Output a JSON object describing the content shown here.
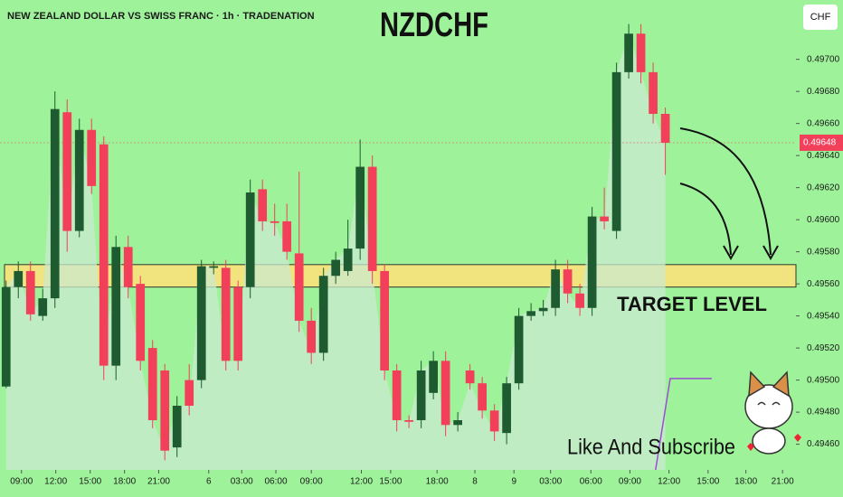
{
  "chart_data": {
    "type": "candlestick",
    "title": "NZDCHF",
    "subtitle": "NEW ZEALAND DOLLAR VS SWISS FRANC · 1h · TRADENATION",
    "currency_button": "CHF",
    "up_color": "#1e5b30",
    "down_color": "#f23f5a",
    "area_color": "#c9e9cf",
    "open": [
      0.49496,
      0.49558,
      0.49568,
      0.4954,
      0.49551,
      0.49667,
      0.49593,
      0.49656,
      0.49647,
      0.49509,
      0.49583,
      0.4956,
      0.4952,
      0.49506,
      0.49458,
      0.495,
      0.495,
      0.4957,
      0.4957,
      0.49558,
      0.49558,
      0.49619,
      0.49599,
      0.49599,
      0.49579,
      0.49537,
      0.49517,
      0.49565,
      0.49568,
      0.49582,
      0.49633,
      0.49568,
      0.49506,
      0.49475,
      0.49475,
      0.49492,
      0.49512,
      0.49472,
      0.49506,
      0.49498,
      0.49481,
      0.49467,
      0.49498,
      0.4954,
      0.49543,
      0.49545,
      0.49569,
      0.49554,
      0.49545,
      0.49602,
      0.49593,
      0.49692,
      0.49716,
      0.49692,
      0.49666
    ],
    "high": [
      0.49562,
      0.49574,
      0.49574,
      0.49557,
      0.4968,
      0.49675,
      0.49663,
      0.49663,
      0.49652,
      0.4959,
      0.4959,
      0.49565,
      0.49525,
      0.4951,
      0.4949,
      0.4951,
      0.49575,
      0.49574,
      0.49575,
      0.49562,
      0.49625,
      0.49625,
      0.4961,
      0.4961,
      0.4963,
      0.49545,
      0.4957,
      0.4958,
      0.496,
      0.4965,
      0.4964,
      0.49572,
      0.4951,
      0.49478,
      0.49512,
      0.49518,
      0.49518,
      0.4948,
      0.4951,
      0.49502,
      0.49485,
      0.49502,
      0.49545,
      0.49548,
      0.4955,
      0.49575,
      0.49575,
      0.4956,
      0.49608,
      0.4962,
      0.49698,
      0.49722,
      0.49722,
      0.49698,
      0.4967
    ],
    "low": [
      0.49495,
      0.49551,
      0.49537,
      0.49537,
      0.49545,
      0.4958,
      0.49589,
      0.49616,
      0.495,
      0.495,
      0.49551,
      0.49506,
      0.4947,
      0.4945,
      0.49452,
      0.49478,
      0.49495,
      0.49566,
      0.49506,
      0.49506,
      0.49551,
      0.49593,
      0.4959,
      0.49575,
      0.4953,
      0.4951,
      0.49512,
      0.4956,
      0.49565,
      0.49575,
      0.4956,
      0.495,
      0.49468,
      0.4947,
      0.4947,
      0.49488,
      0.49465,
      0.49468,
      0.49494,
      0.49476,
      0.49462,
      0.4946,
      0.49494,
      0.49537,
      0.4954,
      0.4954,
      0.49548,
      0.4954,
      0.4954,
      0.49594,
      0.49588,
      0.49688,
      0.49685,
      0.4966,
      0.49628
    ],
    "close": [
      0.49558,
      0.49568,
      0.49541,
      0.49551,
      0.49669,
      0.49593,
      0.49656,
      0.49621,
      0.49509,
      0.49583,
      0.49558,
      0.49512,
      0.49475,
      0.49456,
      0.49484,
      0.49484,
      0.49571,
      0.49571,
      0.49512,
      0.49512,
      0.49617,
      0.49599,
      0.49598,
      0.4958,
      0.49537,
      0.49517,
      0.49565,
      0.49575,
      0.49582,
      0.49633,
      0.49568,
      0.49506,
      0.49475,
      0.49474,
      0.49506,
      0.49512,
      0.49472,
      0.49475,
      0.49498,
      0.49481,
      0.49468,
      0.49498,
      0.4954,
      0.49543,
      0.49545,
      0.49569,
      0.49554,
      0.49545,
      0.49602,
      0.49599,
      0.49692,
      0.49716,
      0.49692,
      0.49666,
      0.49648
    ],
    "xlim": [
      -0.5,
      64.7
    ],
    "xticks": [
      {
        "value": 1.26,
        "label": "09:00"
      },
      {
        "value": 4.07,
        "label": "12:00"
      },
      {
        "value": 6.89,
        "label": "15:00"
      },
      {
        "value": 9.7,
        "label": "18:00"
      },
      {
        "value": 12.5,
        "label": "21:00"
      },
      {
        "value": 16.6,
        "label": "6"
      },
      {
        "value": 19.3,
        "label": "03:00"
      },
      {
        "value": 22.1,
        "label": "06:00"
      },
      {
        "value": 25.0,
        "label": "09:00"
      },
      {
        "value": 29.1,
        "label": "12:00"
      },
      {
        "value": 31.5,
        "label": "15:00"
      },
      {
        "value": 35.3,
        "label": "18:00"
      },
      {
        "value": 38.4,
        "label": "8"
      },
      {
        "value": 41.6,
        "label": "9"
      },
      {
        "value": 44.6,
        "label": "03:00"
      },
      {
        "value": 47.9,
        "label": "06:00"
      },
      {
        "value": 51.1,
        "label": "09:00"
      },
      {
        "value": 54.3,
        "label": "12:00"
      },
      {
        "value": 57.5,
        "label": "15:00"
      },
      {
        "value": 60.6,
        "label": "18:00"
      },
      {
        "value": 63.6,
        "label": "21:00"
      }
    ],
    "ylim": [
      0.49444,
      0.49737
    ],
    "yticks": [
      {
        "value": 0.497,
        "label": "0.49700"
      },
      {
        "value": 0.4968,
        "label": "0.49680"
      },
      {
        "value": 0.4966,
        "label": "0.49660"
      },
      {
        "value": 0.4964,
        "label": "0.49640"
      },
      {
        "value": 0.4962,
        "label": "0.49620"
      },
      {
        "value": 0.496,
        "label": "0.49600"
      },
      {
        "value": 0.4958,
        "label": "0.49580"
      },
      {
        "value": 0.4956,
        "label": "0.49560"
      },
      {
        "value": 0.4954,
        "label": "0.49540"
      },
      {
        "value": 0.4952,
        "label": "0.49520"
      },
      {
        "value": 0.495,
        "label": "0.49500"
      },
      {
        "value": 0.4948,
        "label": "0.49480"
      },
      {
        "value": 0.4946,
        "label": "0.49460"
      }
    ],
    "current_price": {
      "value": 0.49648,
      "label": "0.49648",
      "color": "#f23f5a"
    },
    "target_zone": {
      "label": "TARGET LEVEL",
      "low": 0.49558,
      "high": 0.49572,
      "color": "#fbe27a"
    },
    "indicator": {
      "color": "#9b4dd6",
      "x": [
        53.2,
        54.4,
        57.8
      ],
      "values": [
        0.49444,
        0.49501,
        0.49501
      ]
    },
    "footer_text": "Like And Subscribe"
  }
}
